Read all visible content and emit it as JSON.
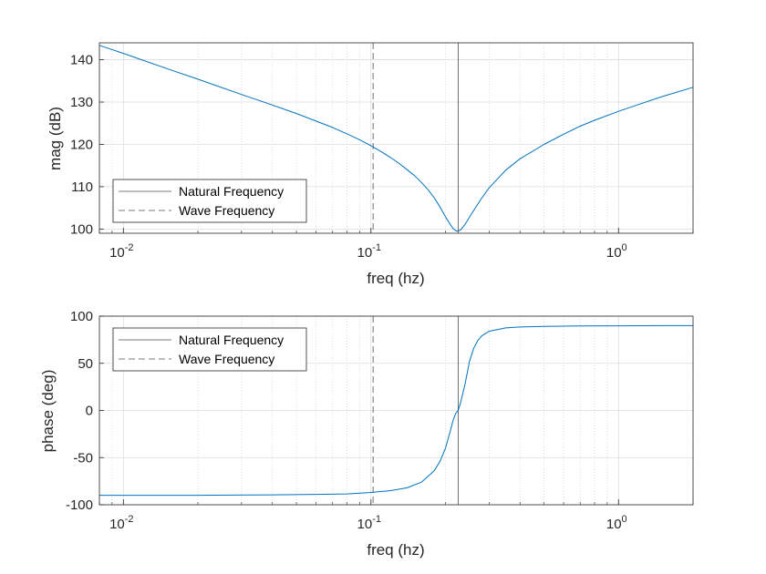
{
  "chart_data": [
    {
      "type": "line",
      "xscale": "log",
      "xlim": [
        0.008,
        2.0
      ],
      "ylim": [
        99,
        144
      ],
      "xlabel": "freq (hz)",
      "ylabel": "mag (dB)",
      "xticks": [
        {
          "value": 0.01,
          "base": "10",
          "exp": "-2"
        },
        {
          "value": 0.1,
          "base": "10",
          "exp": "-1"
        },
        {
          "value": 1,
          "base": "10",
          "exp": "0"
        }
      ],
      "yticks": [
        100,
        110,
        120,
        130,
        140
      ],
      "grid": true,
      "legend_location": "bottom-left",
      "legend": [
        "Natural Frequency",
        "Wave Frequency"
      ],
      "natural_frequency": 0.225,
      "wave_frequency": 0.102,
      "series": [
        {
          "name": "magnitude",
          "color": "#0072BD",
          "x": [
            0.008,
            0.01,
            0.015,
            0.02,
            0.03,
            0.04,
            0.05,
            0.06,
            0.07,
            0.08,
            0.09,
            0.1,
            0.11,
            0.12,
            0.13,
            0.14,
            0.15,
            0.16,
            0.17,
            0.18,
            0.19,
            0.2,
            0.21,
            0.215,
            0.22,
            0.225,
            0.23,
            0.235,
            0.24,
            0.25,
            0.26,
            0.28,
            0.3,
            0.35,
            0.4,
            0.5,
            0.6,
            0.7,
            0.8,
            1.0,
            1.2,
            1.5,
            2.0
          ],
          "y": [
            143.4,
            141.5,
            137.9,
            135.4,
            131.8,
            129.3,
            127.3,
            125.5,
            124.0,
            122.5,
            121.1,
            119.7,
            118.3,
            116.9,
            115.5,
            114.0,
            112.6,
            111.0,
            109.3,
            107.4,
            105.2,
            102.9,
            100.9,
            100.1,
            99.6,
            99.5,
            99.8,
            100.4,
            101.1,
            102.8,
            104.4,
            107.3,
            109.7,
            113.9,
            116.6,
            120.0,
            122.4,
            124.3,
            125.7,
            127.8,
            129.4,
            131.3,
            133.5
          ]
        }
      ]
    },
    {
      "type": "line",
      "xscale": "log",
      "xlim": [
        0.008,
        2.0
      ],
      "ylim": [
        -100,
        100
      ],
      "xlabel": "freq (hz)",
      "ylabel": "phase (deg)",
      "xticks": [
        {
          "value": 0.01,
          "base": "10",
          "exp": "-2"
        },
        {
          "value": 0.1,
          "base": "10",
          "exp": "-1"
        },
        {
          "value": 1,
          "base": "10",
          "exp": "0"
        }
      ],
      "yticks": [
        100,
        50,
        0,
        -50,
        -100
      ],
      "grid": true,
      "legend_location": "top-left",
      "legend": [
        "Natural Frequency",
        "Wave Frequency"
      ],
      "natural_frequency": 0.225,
      "wave_frequency": 0.102,
      "series": [
        {
          "name": "phase",
          "color": "#0072BD",
          "x": [
            0.008,
            0.01,
            0.02,
            0.04,
            0.06,
            0.08,
            0.1,
            0.12,
            0.14,
            0.16,
            0.18,
            0.19,
            0.2,
            0.205,
            0.21,
            0.215,
            0.22,
            0.225,
            0.23,
            0.235,
            0.24,
            0.245,
            0.25,
            0.26,
            0.27,
            0.28,
            0.3,
            0.35,
            0.4,
            0.5,
            0.7,
            1.0,
            1.5,
            2.0
          ],
          "y": [
            -90,
            -90,
            -90,
            -89.5,
            -89,
            -88.5,
            -87,
            -85,
            -82,
            -76,
            -64,
            -54,
            -40,
            -30,
            -20,
            -10,
            -3,
            0,
            8,
            18,
            28,
            40,
            52,
            66,
            74,
            79,
            84,
            87.5,
            88.5,
            89.2,
            89.6,
            89.8,
            90,
            90
          ]
        }
      ]
    }
  ]
}
